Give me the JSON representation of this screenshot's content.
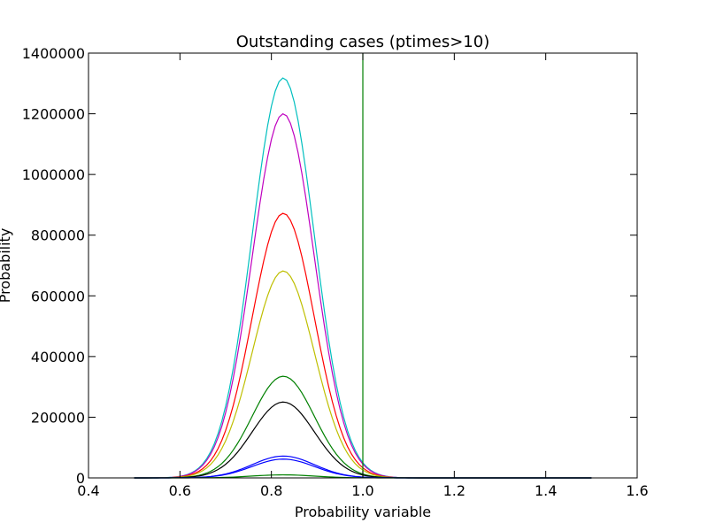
{
  "chart_data": {
    "type": "line",
    "title": "Outstanding cases (ptimes>10)",
    "xlabel": "Probability variable",
    "ylabel": "Probability",
    "xlim": [
      0.4,
      1.6
    ],
    "ylim": [
      0,
      1400000
    ],
    "xticks": [
      0.4,
      0.6,
      0.8,
      1.0,
      1.2,
      1.4,
      1.6
    ],
    "xtick_labels": [
      "0.4",
      "0.6",
      "0.8",
      "1.0",
      "1.2",
      "1.4",
      "1.6"
    ],
    "yticks": [
      0,
      200000,
      400000,
      600000,
      800000,
      1000000,
      1200000,
      1400000
    ],
    "ytick_labels": [
      "0",
      "200000",
      "400000",
      "600000",
      "800000",
      "1000000",
      "1200000",
      "1400000"
    ],
    "grid": false,
    "x_range": [
      0.5,
      1.5
    ],
    "series": [
      {
        "color": "#00bfbf",
        "peak_x": 0.826,
        "peak_y": 1318000,
        "sigma": 0.068
      },
      {
        "color": "#bf00bf",
        "peak_x": 0.826,
        "peak_y": 1200000,
        "sigma": 0.068
      },
      {
        "color": "#ff0000",
        "peak_x": 0.826,
        "peak_y": 872000,
        "sigma": 0.068
      },
      {
        "color": "#bfbf00",
        "peak_x": 0.826,
        "peak_y": 682000,
        "sigma": 0.068
      },
      {
        "color": "#008000",
        "peak_x": 0.826,
        "peak_y": 335000,
        "sigma": 0.068
      },
      {
        "color": "#000000",
        "peak_x": 0.826,
        "peak_y": 250000,
        "sigma": 0.068
      },
      {
        "color": "#0000ff",
        "peak_x": 0.826,
        "peak_y": 72000,
        "sigma": 0.068
      },
      {
        "color": "#0000ff",
        "peak_x": 0.826,
        "peak_y": 62000,
        "sigma": 0.068
      },
      {
        "color": "#008000",
        "peak_x": 0.826,
        "peak_y": 10000,
        "sigma": 0.068
      }
    ],
    "vline": {
      "x": 1.0,
      "color": "#008000"
    }
  }
}
